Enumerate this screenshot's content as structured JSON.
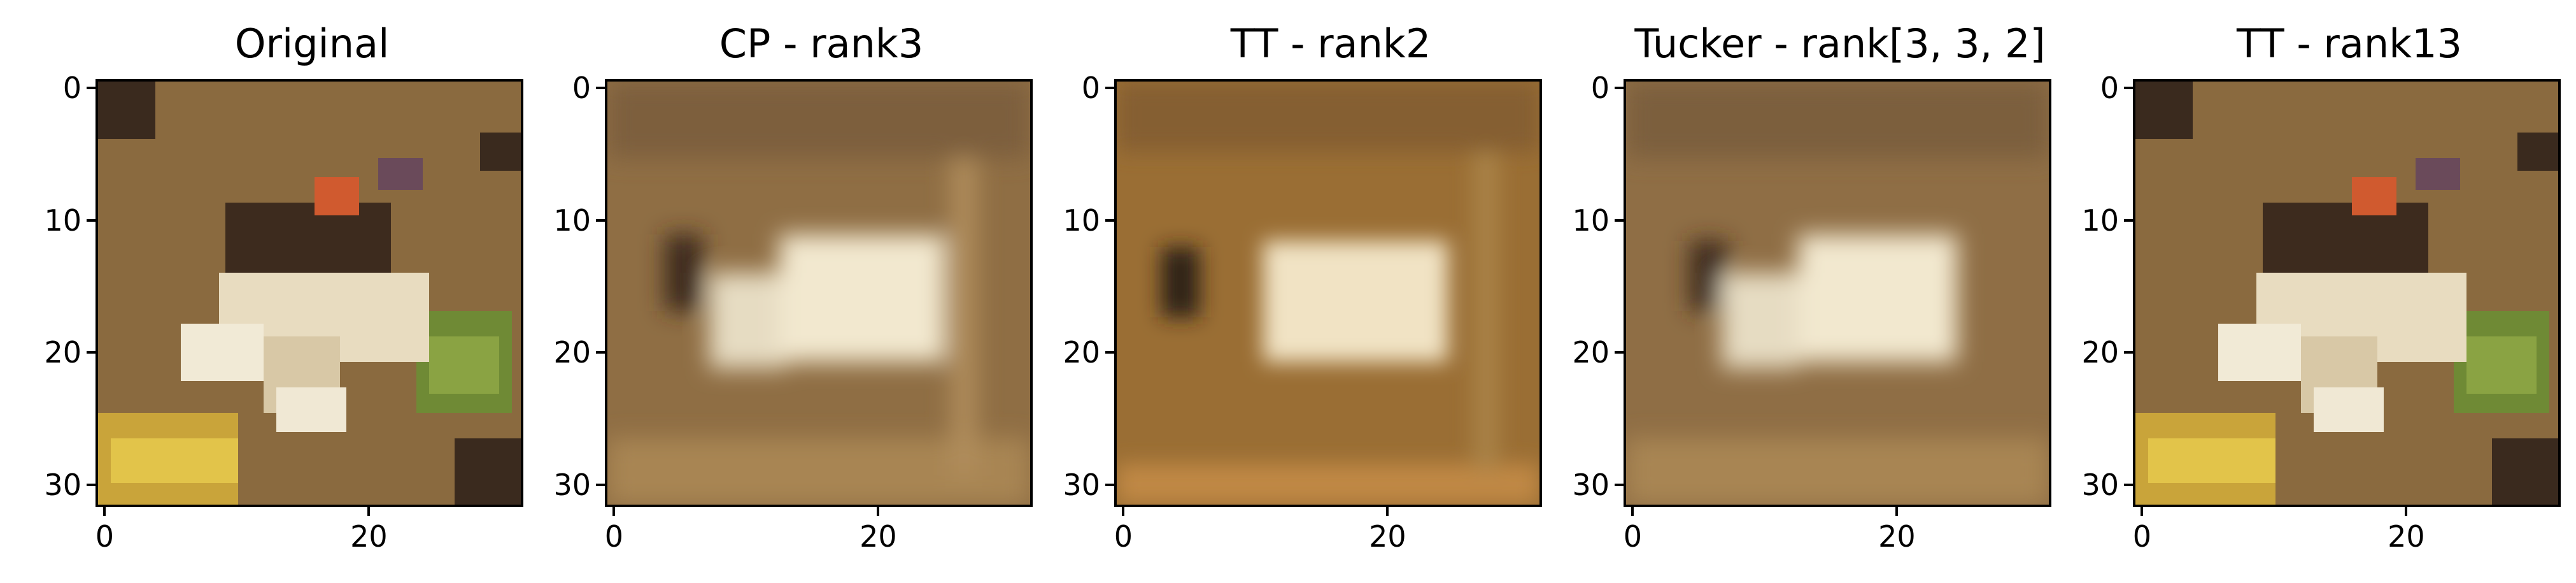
{
  "panels": [
    {
      "title": "Original"
    },
    {
      "title": "CP - rank3"
    },
    {
      "title": "TT - rank2"
    },
    {
      "title": "Tucker - rank[3, 3, 2]"
    },
    {
      "title": "TT - rank13"
    }
  ],
  "axes": {
    "yticks": [
      "0",
      "10",
      "20",
      "30"
    ],
    "xticks": [
      "0",
      "20"
    ]
  },
  "image_content": "pixelated image of a frog on brown ground (CIFAR-10 style 32x32)",
  "colors": {
    "background": "#ffffff",
    "ground_brown": "#8a6a3f",
    "light_brown": "#b08a56",
    "dark_brown": "#4a3220",
    "frog_white": "#efe6cf",
    "frog_orange": "#d05a2f",
    "green": "#7a8a36",
    "yellow": "#d8b83a"
  }
}
